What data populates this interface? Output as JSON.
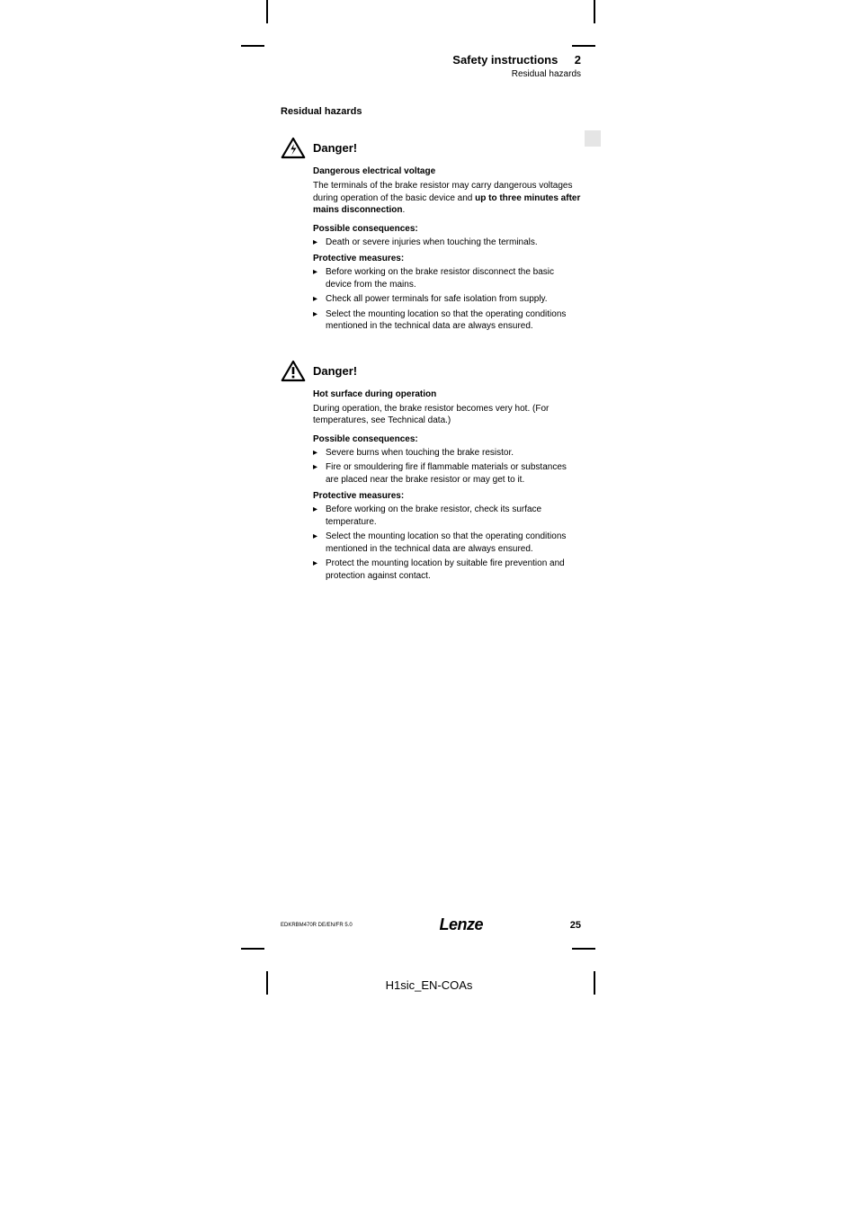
{
  "header": {
    "title": "Safety instructions",
    "number": "2",
    "subtitle": "Residual hazards"
  },
  "section_heading": "Residual hazards",
  "warnings": [
    {
      "icon": "lightning",
      "title": "Danger!",
      "subtitle": "Dangerous electrical voltage",
      "paragraph_pre": "The terminals of the brake resistor may carry dangerous voltages during operation of the basic device and ",
      "paragraph_bold": "up to three minutes after mains disconnection",
      "paragraph_post": ".",
      "consequences_label": "Possible consequences:",
      "consequences": [
        "Death or severe injuries when touching the terminals."
      ],
      "measures_label": "Protective measures:",
      "measures": [
        "Before working on the brake resistor disconnect the basic device from the mains.",
        "Check all power terminals for safe isolation from supply.",
        "Select the mounting location so that the operating conditions mentioned in the technical data are always ensured."
      ]
    },
    {
      "icon": "exclaim",
      "title": "Danger!",
      "subtitle": "Hot surface during operation",
      "paragraph_pre": "During operation, the brake resistor becomes very hot. (For temperatures, see Technical data.)",
      "paragraph_bold": "",
      "paragraph_post": "",
      "consequences_label": "Possible consequences:",
      "consequences": [
        "Severe burns when touching the brake resistor.",
        "Fire or smouldering fire if flammable materials or substances are placed near the brake resistor or may get to it."
      ],
      "measures_label": "Protective measures:",
      "measures": [
        "Before working on the brake resistor, check its surface temperature.",
        "Select the mounting location so that the operating conditions mentioned in the technical data are always ensured.",
        "Protect the mounting location by suitable fire prevention and protection against contact."
      ]
    }
  ],
  "footer": {
    "doc_code": "EDKRBM470R  DE/EN/FR  5.0",
    "logo": "Lenze",
    "page_number": "25"
  },
  "file_code": "H1sic_EN-COAs",
  "colors": {
    "text": "#000000",
    "background": "#ffffff",
    "gray_tab": "#e5e5e5"
  }
}
